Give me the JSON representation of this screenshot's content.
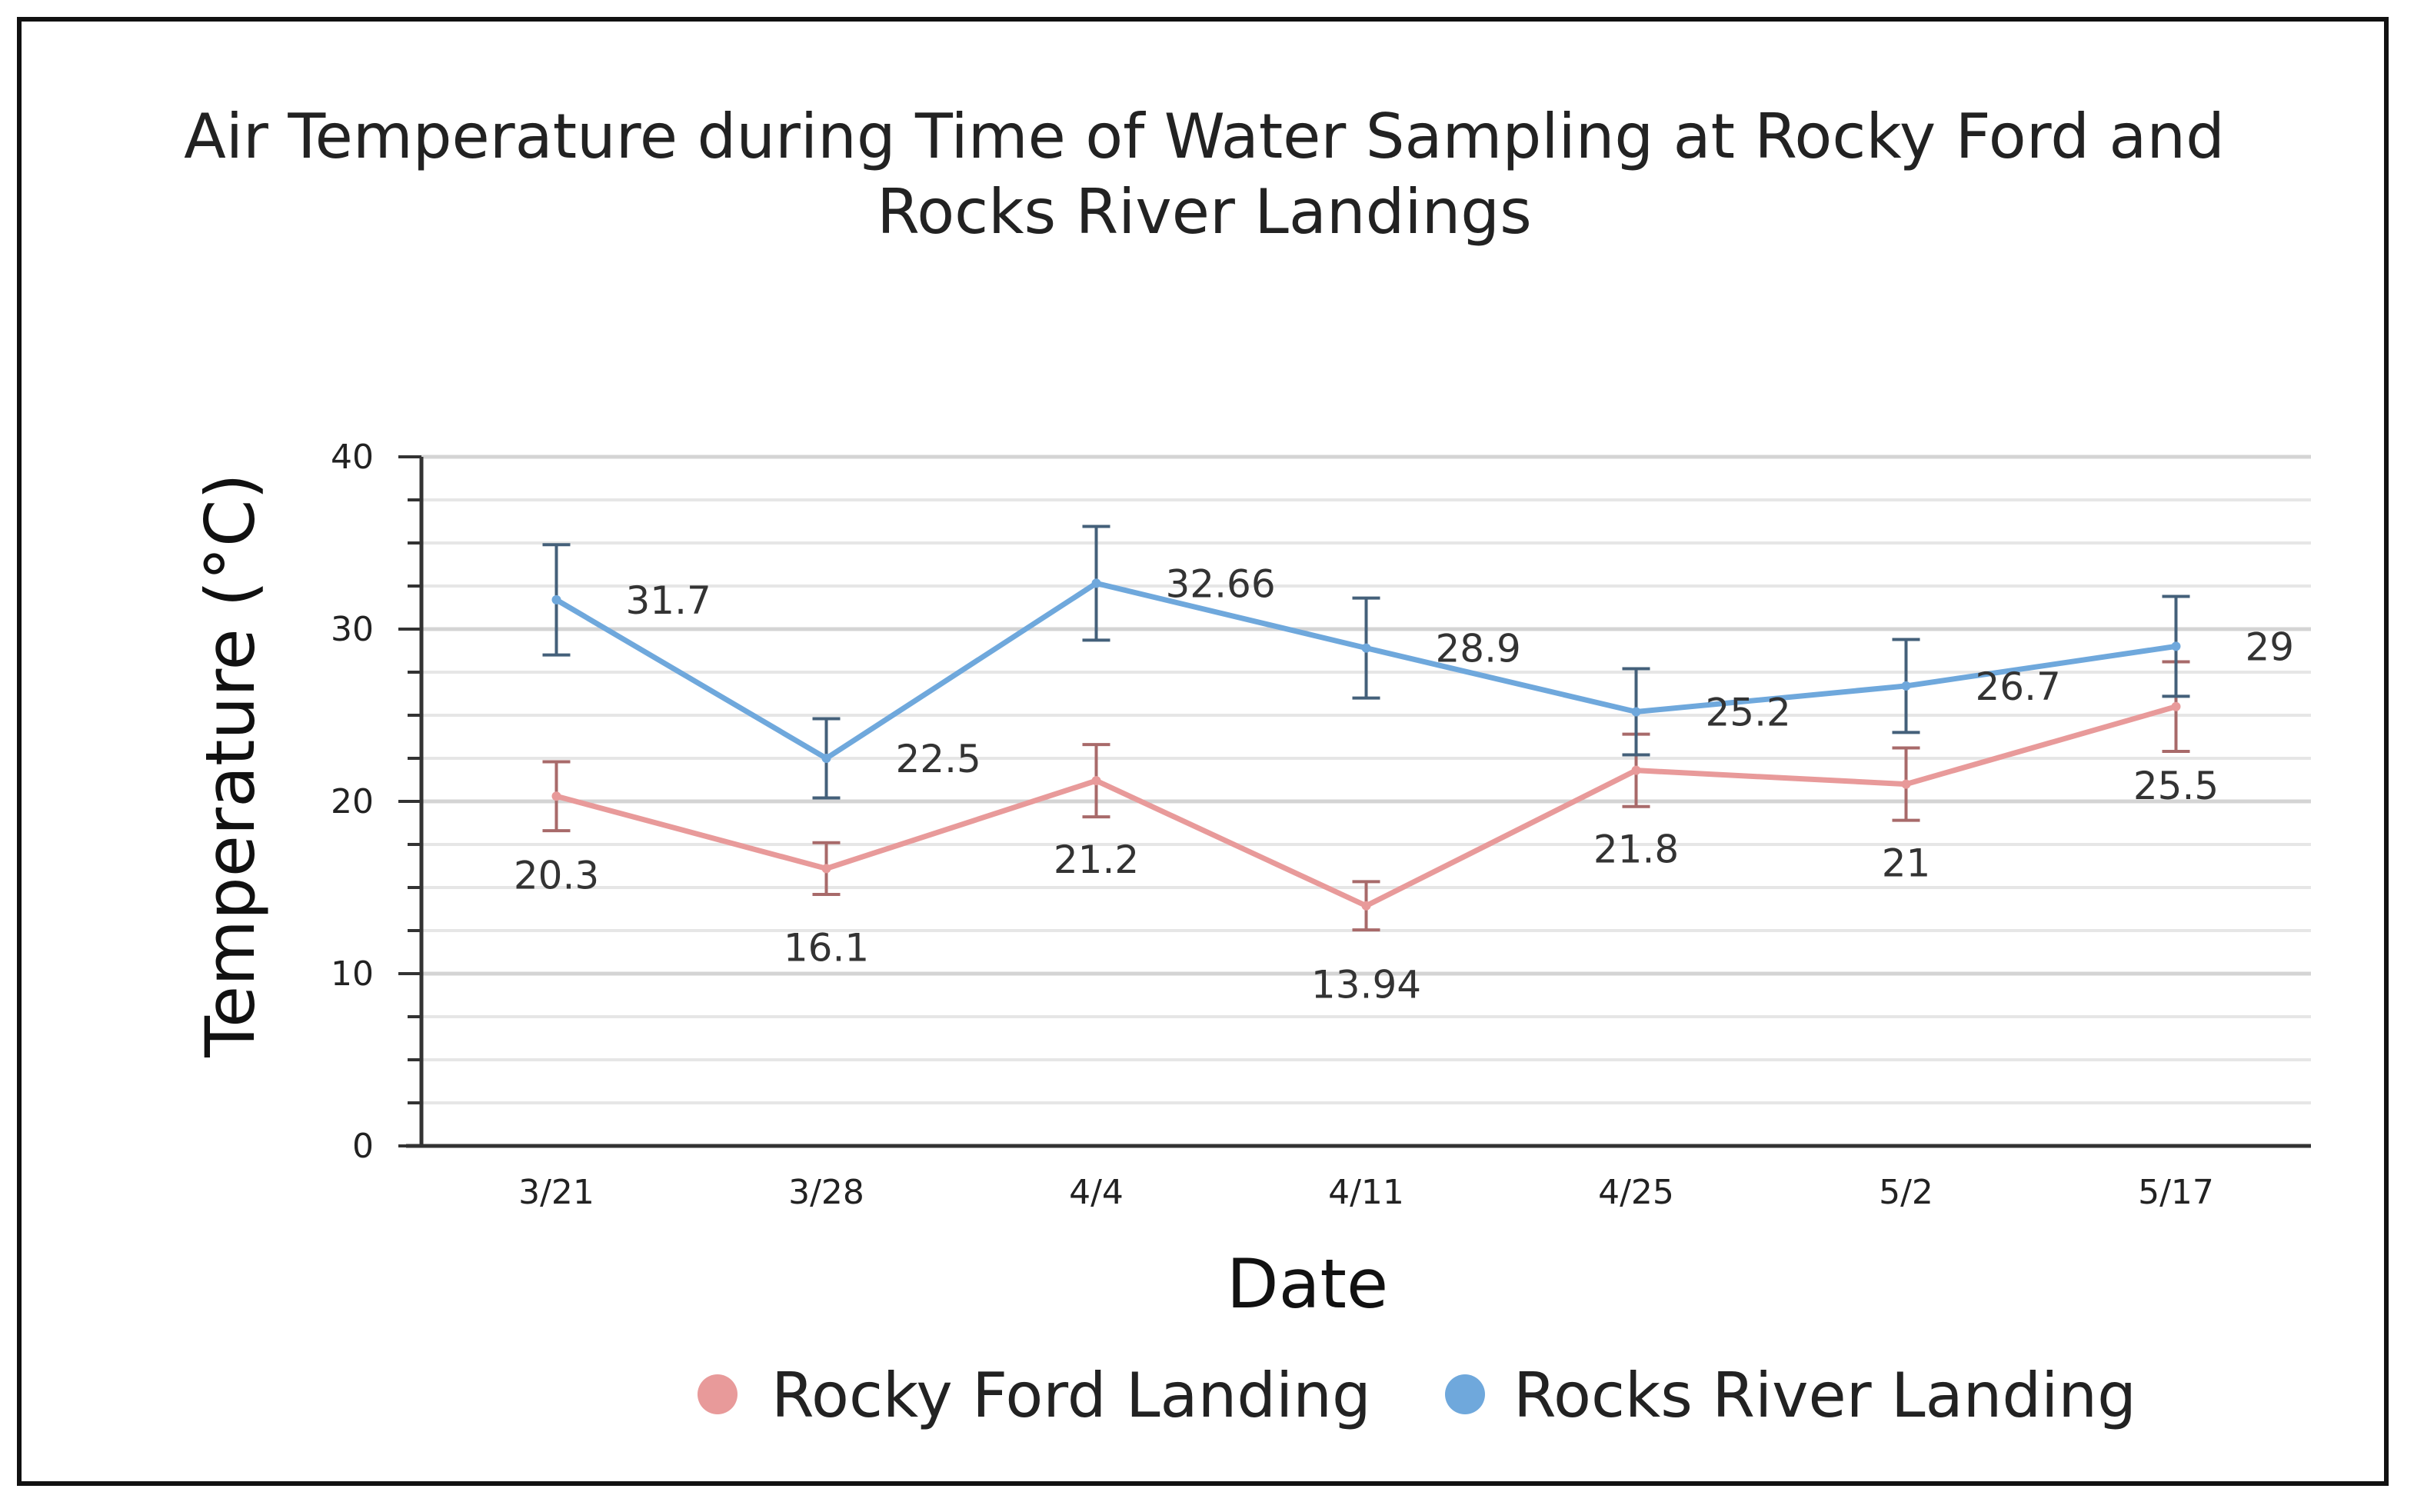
{
  "chart_data": {
    "type": "line",
    "title_lines": [
      "Air Temperature during Time of Water Sampling at Rocky Ford and",
      "Rocks River Landings"
    ],
    "xlabel": "Date",
    "ylabel": "Temperature (°C)",
    "categories": [
      "3/21",
      "3/28",
      "4/4",
      "4/11",
      "4/25",
      "5/2",
      "5/17"
    ],
    "ylim": [
      0,
      40
    ],
    "yticks": [
      0,
      10,
      20,
      30,
      40
    ],
    "ytick_labels": [
      "0",
      "10",
      "20",
      "30",
      "40"
    ],
    "grid": true,
    "legend_position": "bottom",
    "series": [
      {
        "name": "Rocky Ford Landing",
        "color": "#e89a9a",
        "errorbar_color": "#a86a6a",
        "values": [
          20.3,
          16.1,
          21.2,
          13.94,
          21.8,
          21,
          25.5
        ],
        "labels": [
          "20.3",
          "16.1",
          "21.2",
          "13.94",
          "21.8",
          "21",
          "25.5"
        ],
        "error": [
          2.0,
          1.5,
          2.1,
          1.4,
          2.1,
          2.1,
          2.6
        ],
        "label_position": "below"
      },
      {
        "name": "Rocks River Landing",
        "color": "#6fa8dc",
        "errorbar_color": "#44607a",
        "values": [
          31.7,
          22.5,
          32.66,
          28.9,
          25.2,
          26.7,
          29
        ],
        "labels": [
          "31.7",
          "22.5",
          "32.66",
          "28.9",
          "25.2",
          "26.7",
          "29"
        ],
        "error": [
          3.2,
          2.3,
          3.3,
          2.9,
          2.5,
          2.7,
          2.9
        ],
        "label_position": "right"
      }
    ]
  }
}
